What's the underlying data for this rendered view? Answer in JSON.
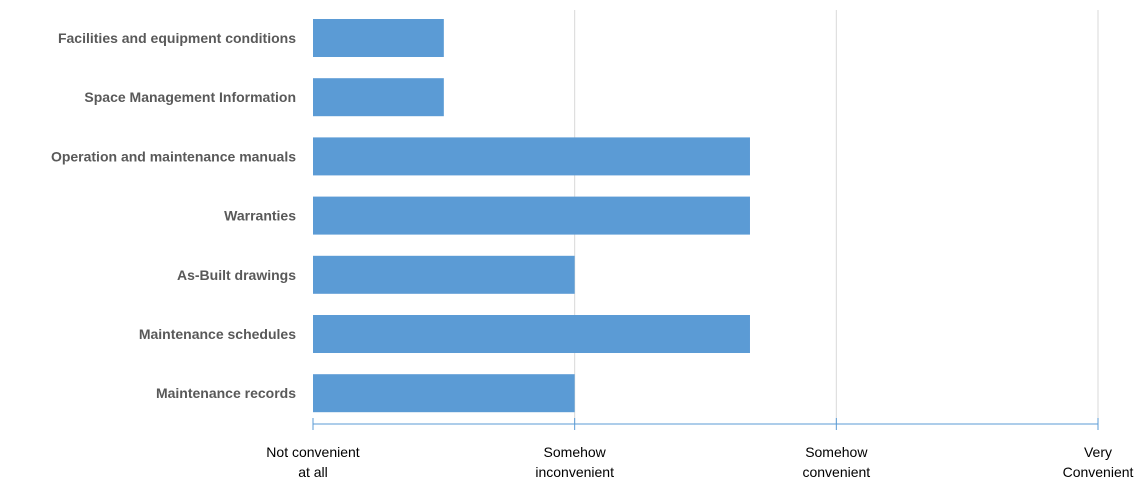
{
  "chart_data": {
    "type": "bar",
    "orientation": "horizontal",
    "categories": [
      "Facilities and equipment conditions",
      "Space Management Information",
      "Operation and maintenance manuals",
      "Warranties",
      "As-Built drawings",
      "Maintenance schedules",
      "Maintenance records"
    ],
    "values": [
      1.5,
      1.5,
      2.67,
      2.67,
      2,
      2.67,
      2
    ],
    "xlim": [
      1,
      4
    ],
    "x_ticks": [
      {
        "value": 1,
        "label": [
          "Not convenient",
          "at all"
        ]
      },
      {
        "value": 2,
        "label": [
          "Somehow",
          "inconvenient"
        ]
      },
      {
        "value": 3,
        "label": [
          "Somehow",
          "convenient"
        ]
      },
      {
        "value": 4,
        "label": [
          "Very",
          "Convenient"
        ]
      }
    ],
    "grid": "vertical",
    "legend": "none",
    "colors": {
      "bar": "#5B9BD5",
      "grid": "#D9D9D9",
      "axis": "#5B9BD5"
    }
  }
}
